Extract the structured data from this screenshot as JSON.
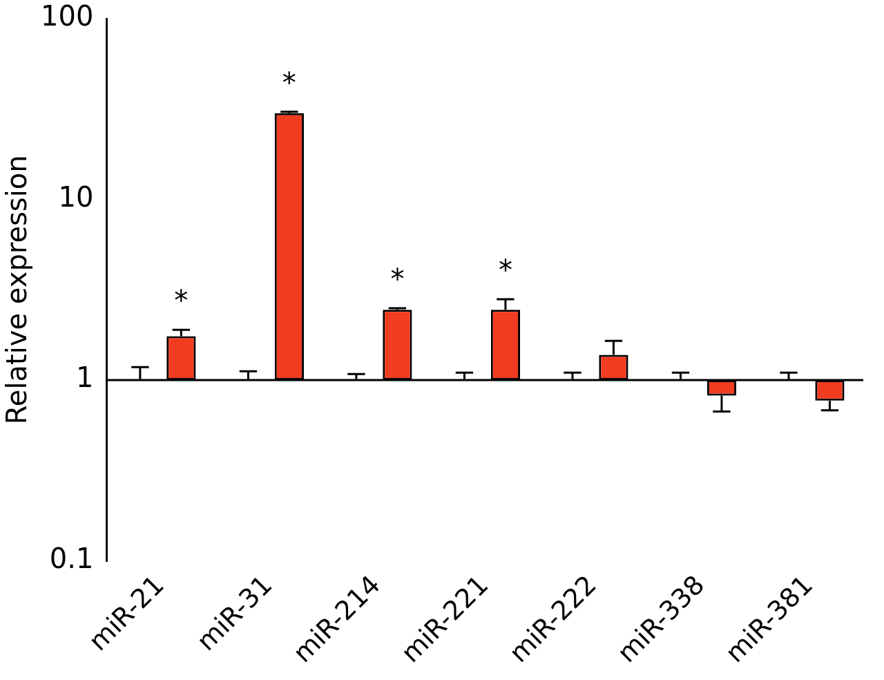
{
  "chart_data": {
    "type": "bar",
    "y_label": "Relative expression",
    "categories": [
      "miR-21",
      "miR-31",
      "miR-214",
      "miR-221",
      "miR-222",
      "miR-338",
      "miR-381"
    ],
    "series": [
      {
        "color": "#ffffff",
        "values": [
          1,
          1,
          1,
          1,
          1,
          1,
          1
        ],
        "errors": [
          0.18,
          0.12,
          0.08,
          0.1,
          0.1,
          0.1,
          0.1
        ]
      },
      {
        "color": "#f23c22",
        "values": [
          1.75,
          30,
          2.45,
          2.45,
          1.38,
          0.82,
          0.77
        ],
        "errors": [
          0.15,
          0.5,
          0.05,
          0.35,
          0.27,
          0.15,
          0.09
        ]
      }
    ],
    "annotations": [
      {
        "category": "miR-21",
        "text": "*"
      },
      {
        "category": "miR-31",
        "text": "*"
      },
      {
        "category": "miR-214",
        "text": "*"
      },
      {
        "category": "miR-221",
        "text": "*"
      }
    ],
    "log": "y",
    "ylim": [
      0.1,
      100
    ],
    "yticks": [
      0.1,
      1,
      10,
      100
    ],
    "grid": false
  }
}
